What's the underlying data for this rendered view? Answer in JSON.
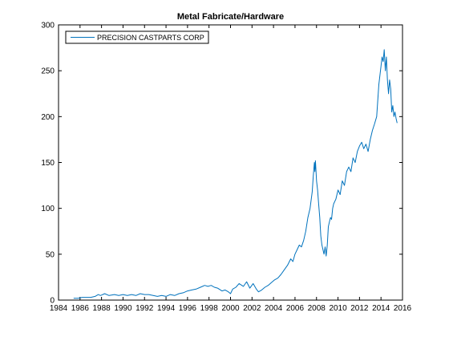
{
  "chart_data": {
    "type": "line",
    "title": "Metal Fabricate/Hardware",
    "xlabel": "",
    "ylabel": "",
    "xlim": [
      1984,
      2016
    ],
    "ylim": [
      0,
      300
    ],
    "x_ticks": [
      1984,
      1986,
      1988,
      1990,
      1992,
      1994,
      1996,
      1998,
      2000,
      2002,
      2004,
      2006,
      2008,
      2010,
      2012,
      2014,
      2016
    ],
    "y_ticks": [
      0,
      50,
      100,
      150,
      200,
      250,
      300
    ],
    "grid": false,
    "legend_position": "top-left",
    "series": [
      {
        "name": "PRECISION CASTPARTS CORP",
        "color": "#0072bd",
        "x": [
          1985.4,
          1985.8,
          1986.2,
          1986.6,
          1987.0,
          1987.4,
          1987.7,
          1987.9,
          1988.3,
          1988.7,
          1989.2,
          1989.6,
          1990.0,
          1990.4,
          1990.8,
          1991.2,
          1991.6,
          1992.0,
          1992.4,
          1992.8,
          1993.2,
          1993.6,
          1994.0,
          1994.4,
          1994.8,
          1995.2,
          1995.6,
          1996.0,
          1996.4,
          1996.8,
          1997.2,
          1997.6,
          1997.9,
          1998.2,
          1998.5,
          1998.8,
          1999.2,
          1999.5,
          1999.8,
          2000.0,
          2000.2,
          2000.5,
          2000.8,
          2001.2,
          2001.5,
          2001.8,
          2002.1,
          2002.4,
          2002.6,
          2002.9,
          2003.2,
          2003.5,
          2003.8,
          2004.1,
          2004.4,
          2004.7,
          2005.0,
          2005.3,
          2005.6,
          2005.8,
          2006.0,
          2006.2,
          2006.4,
          2006.6,
          2006.8,
          2007.0,
          2007.2,
          2007.4,
          2007.6,
          2007.7,
          2007.8,
          2007.85,
          2007.9,
          2008.0,
          2008.1,
          2008.2,
          2008.3,
          2008.4,
          2008.5,
          2008.6,
          2008.7,
          2008.8,
          2008.9,
          2009.0,
          2009.1,
          2009.2,
          2009.3,
          2009.4,
          2009.5,
          2009.6,
          2009.8,
          2010.0,
          2010.2,
          2010.4,
          2010.6,
          2010.8,
          2011.0,
          2011.2,
          2011.4,
          2011.6,
          2011.8,
          2012.0,
          2012.2,
          2012.4,
          2012.6,
          2012.8,
          2013.0,
          2013.2,
          2013.4,
          2013.6,
          2013.8,
          2014.0,
          2014.1,
          2014.2,
          2014.3,
          2014.4,
          2014.5,
          2014.6,
          2014.7,
          2014.8,
          2014.9,
          2015.0,
          2015.1,
          2015.2,
          2015.3,
          2015.4,
          2015.5
        ],
        "y": [
          2,
          2,
          3,
          3,
          3,
          4,
          6,
          5,
          7,
          5,
          6,
          5,
          6,
          5,
          6,
          5,
          7,
          6,
          6,
          5,
          4,
          5,
          4,
          6,
          5,
          7,
          8,
          10,
          11,
          12,
          14,
          16,
          15,
          16,
          14,
          13,
          10,
          11,
          9,
          7,
          12,
          14,
          18,
          15,
          20,
          13,
          18,
          12,
          9,
          11,
          14,
          16,
          19,
          22,
          24,
          28,
          33,
          38,
          45,
          42,
          50,
          55,
          60,
          58,
          65,
          75,
          90,
          100,
          118,
          135,
          150,
          140,
          152,
          130,
          120,
          105,
          90,
          70,
          60,
          55,
          50,
          58,
          48,
          60,
          80,
          85,
          90,
          88,
          100,
          105,
          110,
          120,
          115,
          130,
          125,
          140,
          145,
          140,
          155,
          150,
          162,
          168,
          172,
          165,
          170,
          162,
          175,
          185,
          192,
          200,
          235,
          255,
          265,
          260,
          273,
          250,
          265,
          240,
          225,
          240,
          230,
          205,
          212,
          200,
          205,
          198,
          193
        ]
      }
    ]
  }
}
